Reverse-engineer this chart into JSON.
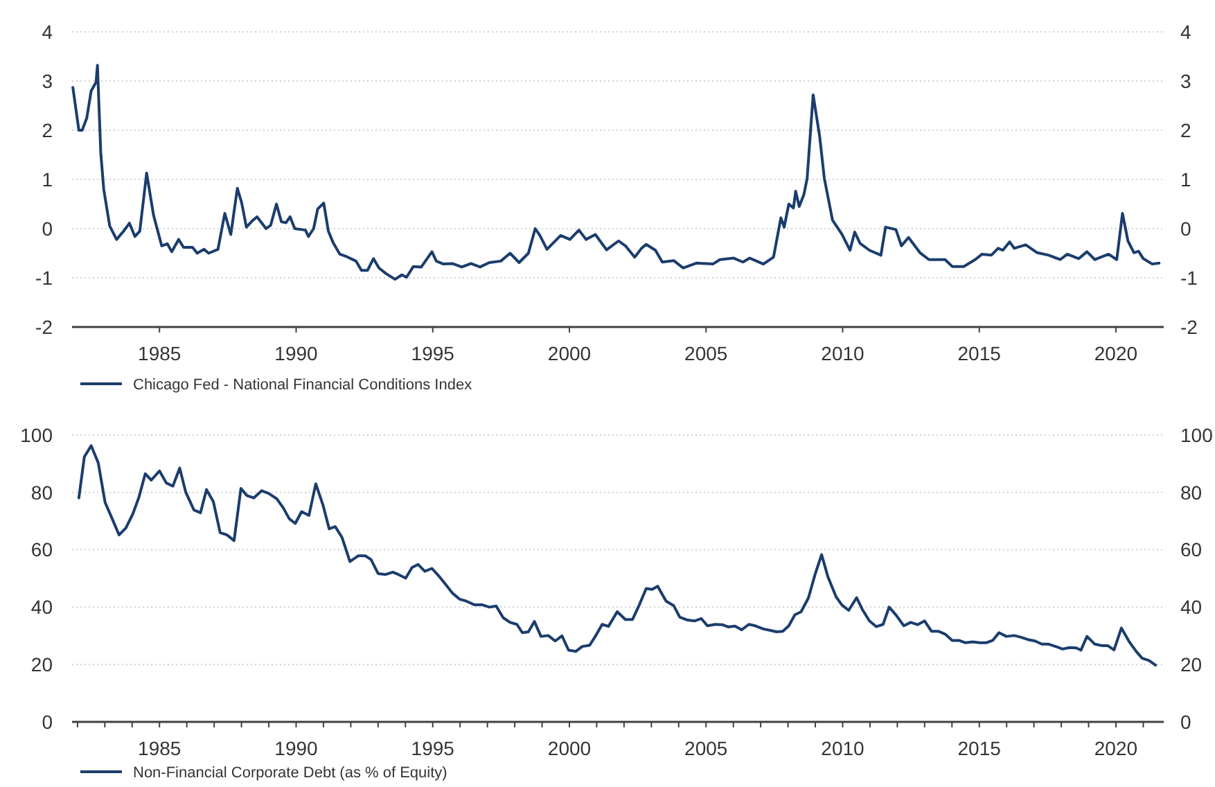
{
  "chart_data": [
    {
      "type": "line",
      "xlim": [
        1981.8,
        2021.75
      ],
      "xticks": [
        1985,
        1990,
        1995,
        2000,
        2005,
        2010,
        2015,
        2020
      ],
      "ylim": [
        -2,
        4
      ],
      "yticks": [
        -2,
        -1,
        0,
        1,
        2,
        3,
        4
      ],
      "y2lim": [
        -2,
        4
      ],
      "y2ticks": [
        -2,
        -1,
        0,
        1,
        2,
        3,
        4
      ],
      "grid": "y",
      "legend": "bottom",
      "marker": "none",
      "line_style": "solid",
      "series": [
        {
          "name": "Chicago Fed - National Financial Conditions Index",
          "color": "#1b3d6d",
          "x": [
            1981.83,
            1982.05,
            1982.17,
            1982.34,
            1982.5,
            1982.68,
            1982.73,
            1982.85,
            1982.96,
            1983.18,
            1983.43,
            1983.69,
            1983.9,
            1984.1,
            1984.28,
            1984.53,
            1984.78,
            1985.08,
            1985.29,
            1985.45,
            1985.7,
            1985.88,
            1986.21,
            1986.38,
            1986.63,
            1986.8,
            1987.14,
            1987.39,
            1987.61,
            1987.85,
            1988.01,
            1988.18,
            1988.4,
            1988.57,
            1988.9,
            1989.07,
            1989.28,
            1989.46,
            1989.63,
            1989.78,
            1989.95,
            1990.34,
            1990.45,
            1990.64,
            1990.79,
            1991.01,
            1991.18,
            1991.35,
            1991.6,
            1991.85,
            1992.19,
            1992.39,
            1992.61,
            1992.83,
            1993.03,
            1993.28,
            1993.62,
            1993.87,
            1994.04,
            1994.29,
            1994.58,
            1994.97,
            1995.13,
            1995.39,
            1995.72,
            1996.06,
            1996.4,
            1996.73,
            1997.07,
            1997.49,
            1997.83,
            1998.16,
            1998.5,
            1998.75,
            1998.92,
            1999.18,
            1999.68,
            2000.02,
            2000.35,
            2000.61,
            2000.95,
            2001.36,
            2001.8,
            2002.05,
            2002.39,
            2002.64,
            2002.81,
            2003.15,
            2003.4,
            2003.82,
            2004.16,
            2004.66,
            2005.25,
            2005.51,
            2006.01,
            2006.35,
            2006.6,
            2007.1,
            2007.47,
            2007.74,
            2007.86,
            2008.03,
            2008.2,
            2008.28,
            2008.41,
            2008.58,
            2008.7,
            2008.92,
            2009.16,
            2009.33,
            2009.63,
            2009.97,
            2010.27,
            2010.44,
            2010.64,
            2010.98,
            2011.4,
            2011.57,
            2011.95,
            2012.15,
            2012.41,
            2012.83,
            2013.16,
            2013.75,
            2014.01,
            2014.43,
            2014.85,
            2015.1,
            2015.44,
            2015.69,
            2015.86,
            2016.11,
            2016.28,
            2016.7,
            2017.12,
            2017.54,
            2017.96,
            2018.22,
            2018.64,
            2018.94,
            2019.23,
            2019.73,
            2020.03,
            2020.24,
            2020.44,
            2020.66,
            2020.83,
            2021.0,
            2021.33,
            2021.58
          ],
          "values": [
            2.87,
            2.0,
            2.0,
            2.25,
            2.8,
            2.98,
            3.32,
            1.55,
            0.8,
            0.05,
            -0.22,
            -0.05,
            0.11,
            -0.16,
            -0.05,
            1.13,
            0.28,
            -0.35,
            -0.31,
            -0.47,
            -0.22,
            -0.38,
            -0.38,
            -0.5,
            -0.42,
            -0.5,
            -0.42,
            0.31,
            -0.12,
            0.82,
            0.52,
            0.03,
            0.16,
            0.24,
            0.0,
            0.07,
            0.5,
            0.14,
            0.12,
            0.24,
            0.0,
            -0.03,
            -0.16,
            0.0,
            0.4,
            0.52,
            -0.05,
            -0.28,
            -0.52,
            -0.57,
            -0.66,
            -0.85,
            -0.85,
            -0.61,
            -0.8,
            -0.91,
            -1.03,
            -0.94,
            -0.99,
            -0.77,
            -0.78,
            -0.47,
            -0.66,
            -0.72,
            -0.71,
            -0.78,
            -0.71,
            -0.78,
            -0.69,
            -0.66,
            -0.5,
            -0.69,
            -0.5,
            0.0,
            -0.14,
            -0.42,
            -0.14,
            -0.22,
            -0.03,
            -0.22,
            -0.12,
            -0.43,
            -0.25,
            -0.35,
            -0.58,
            -0.4,
            -0.32,
            -0.44,
            -0.68,
            -0.65,
            -0.8,
            -0.7,
            -0.72,
            -0.63,
            -0.6,
            -0.68,
            -0.6,
            -0.72,
            -0.58,
            0.22,
            0.03,
            0.5,
            0.42,
            0.76,
            0.45,
            0.69,
            1.02,
            2.72,
            1.87,
            1.02,
            0.17,
            -0.11,
            -0.44,
            -0.07,
            -0.3,
            -0.44,
            -0.54,
            0.03,
            -0.02,
            -0.35,
            -0.18,
            -0.49,
            -0.63,
            -0.63,
            -0.77,
            -0.77,
            -0.63,
            -0.52,
            -0.54,
            -0.4,
            -0.44,
            -0.27,
            -0.4,
            -0.33,
            -0.49,
            -0.54,
            -0.63,
            -0.52,
            -0.61,
            -0.47,
            -0.63,
            -0.52,
            -0.63,
            0.31,
            -0.25,
            -0.49,
            -0.46,
            -0.61,
            -0.72,
            -0.7
          ]
        }
      ]
    },
    {
      "type": "line",
      "xlim": [
        1981.8,
        2021.75
      ],
      "xticks": [
        {
          "value": 1982,
          "label": null
        },
        {
          "value": 1983,
          "label": null
        },
        {
          "value": 1984,
          "label": null
        },
        1985,
        {
          "value": 1986,
          "label": null
        },
        {
          "value": 1987,
          "label": null
        },
        {
          "value": 1988,
          "label": null
        },
        {
          "value": 1989,
          "label": null
        },
        1990,
        {
          "value": 1991,
          "label": null
        },
        {
          "value": 1992,
          "label": null
        },
        {
          "value": 1993,
          "label": null
        },
        {
          "value": 1994,
          "label": null
        },
        1995,
        {
          "value": 1996,
          "label": null
        },
        {
          "value": 1997,
          "label": null
        },
        {
          "value": 1998,
          "label": null
        },
        {
          "value": 1999,
          "label": null
        },
        2000,
        {
          "value": 2001,
          "label": null
        },
        {
          "value": 2002,
          "label": null
        },
        {
          "value": 2003,
          "label": null
        },
        {
          "value": 2004,
          "label": null
        },
        2005,
        {
          "value": 2006,
          "label": null
        },
        {
          "value": 2007,
          "label": null
        },
        {
          "value": 2008,
          "label": null
        },
        {
          "value": 2009,
          "label": null
        },
        2010,
        {
          "value": 2011,
          "label": null
        },
        {
          "value": 2012,
          "label": null
        },
        {
          "value": 2013,
          "label": null
        },
        {
          "value": 2014,
          "label": null
        },
        2015,
        {
          "value": 2016,
          "label": null
        },
        {
          "value": 2017,
          "label": null
        },
        {
          "value": 2018,
          "label": null
        },
        {
          "value": 2019,
          "label": null
        },
        2020,
        {
          "value": 2021,
          "label": null
        }
      ],
      "ylim": [
        0,
        100
      ],
      "yticks": [
        0,
        20,
        40,
        60,
        80,
        100
      ],
      "y2lim": [
        0,
        100
      ],
      "y2ticks": [
        0,
        20,
        40,
        60,
        80,
        100
      ],
      "grid": "y",
      "legend": "bottom",
      "marker": "none",
      "line_style": "solid",
      "series": [
        {
          "name": "Non-Financial Corporate Debt (as % of Equity)",
          "color": "#1b3d6d",
          "x": [
            1982.05,
            1982.25,
            1982.5,
            1982.76,
            1983.01,
            1983.27,
            1983.52,
            1983.77,
            1984.02,
            1984.24,
            1984.48,
            1984.7,
            1985.0,
            1985.25,
            1985.49,
            1985.74,
            1985.96,
            1986.26,
            1986.5,
            1986.72,
            1986.97,
            1987.22,
            1987.47,
            1987.73,
            1987.98,
            1988.2,
            1988.45,
            1988.74,
            1988.99,
            1989.29,
            1989.53,
            1989.75,
            1989.97,
            1990.2,
            1990.47,
            1990.72,
            1990.98,
            1991.21,
            1991.43,
            1991.68,
            1991.97,
            1992.27,
            1992.53,
            1992.74,
            1993.0,
            1993.28,
            1993.54,
            1993.74,
            1994.01,
            1994.24,
            1994.46,
            1994.71,
            1994.97,
            1995.22,
            1995.5,
            1995.72,
            1995.98,
            1996.23,
            1996.53,
            1996.82,
            1997.07,
            1997.32,
            1997.58,
            1997.83,
            1998.08,
            1998.28,
            1998.5,
            1998.72,
            1998.96,
            1999.23,
            1999.48,
            1999.73,
            1999.97,
            2000.24,
            2000.47,
            2000.74,
            2000.98,
            2001.2,
            2001.43,
            2001.75,
            2002.05,
            2002.31,
            2002.56,
            2002.81,
            2003.03,
            2003.23,
            2003.54,
            2003.82,
            2004.04,
            2004.33,
            2004.58,
            2004.83,
            2005.05,
            2005.34,
            2005.59,
            2005.81,
            2006.06,
            2006.3,
            2006.57,
            2006.8,
            2007.1,
            2007.36,
            2007.58,
            2007.81,
            2008.03,
            2008.25,
            2008.48,
            2008.75,
            2008.99,
            2009.23,
            2009.46,
            2009.76,
            2009.97,
            2010.22,
            2010.51,
            2010.72,
            2010.98,
            2011.23,
            2011.48,
            2011.7,
            2011.95,
            2012.24,
            2012.49,
            2012.74,
            2013.0,
            2013.25,
            2013.5,
            2013.75,
            2014.01,
            2014.26,
            2014.48,
            2014.76,
            2015.02,
            2015.27,
            2015.49,
            2015.72,
            2015.99,
            2016.28,
            2016.53,
            2016.78,
            2017.04,
            2017.29,
            2017.54,
            2017.79,
            2018.05,
            2018.3,
            2018.55,
            2018.72,
            2018.94,
            2019.23,
            2019.48,
            2019.7,
            2019.93,
            2020.2,
            2020.49,
            2020.74,
            2020.96,
            2021.21,
            2021.45
          ],
          "values": [
            78.1,
            92.4,
            96.3,
            90.3,
            76.5,
            70.8,
            65.2,
            67.6,
            72.4,
            78.1,
            86.5,
            84.3,
            87.5,
            83.3,
            82.2,
            88.5,
            80.1,
            73.9,
            72.9,
            81.0,
            76.8,
            66.0,
            65.2,
            63.2,
            81.4,
            78.9,
            78.1,
            80.6,
            79.7,
            77.8,
            74.6,
            70.8,
            69.2,
            73.3,
            72.0,
            83.0,
            75.7,
            67.3,
            68.1,
            64.3,
            55.9,
            57.9,
            57.9,
            56.6,
            51.7,
            51.4,
            52.2,
            51.4,
            50.1,
            53.8,
            54.9,
            52.5,
            53.5,
            50.9,
            47.6,
            44.9,
            42.8,
            42.1,
            40.8,
            40.8,
            40.0,
            40.4,
            36.3,
            34.7,
            34.0,
            31.1,
            31.4,
            35.0,
            29.8,
            30.1,
            28.2,
            30.0,
            25.0,
            24.6,
            26.3,
            26.7,
            30.3,
            34.0,
            33.3,
            38.4,
            35.7,
            35.7,
            40.8,
            46.5,
            46.2,
            47.3,
            42.1,
            40.5,
            36.5,
            35.5,
            35.2,
            36.0,
            33.5,
            34.0,
            33.9,
            33.1,
            33.4,
            32.1,
            34.0,
            33.5,
            32.4,
            31.9,
            31.4,
            31.6,
            33.5,
            37.3,
            38.4,
            43.3,
            51.4,
            58.3,
            50.6,
            43.6,
            40.8,
            38.9,
            43.3,
            39.2,
            35.2,
            33.2,
            34.0,
            40.0,
            37.3,
            33.5,
            34.7,
            33.9,
            35.2,
            31.6,
            31.6,
            30.6,
            28.4,
            28.4,
            27.6,
            27.9,
            27.6,
            27.6,
            28.4,
            31.1,
            29.8,
            30.1,
            29.5,
            28.7,
            28.2,
            27.1,
            27.1,
            26.3,
            25.4,
            25.9,
            25.8,
            25.0,
            29.8,
            27.1,
            26.6,
            26.6,
            25.1,
            32.7,
            27.9,
            24.6,
            22.2,
            21.4,
            19.8
          ]
        }
      ]
    }
  ]
}
